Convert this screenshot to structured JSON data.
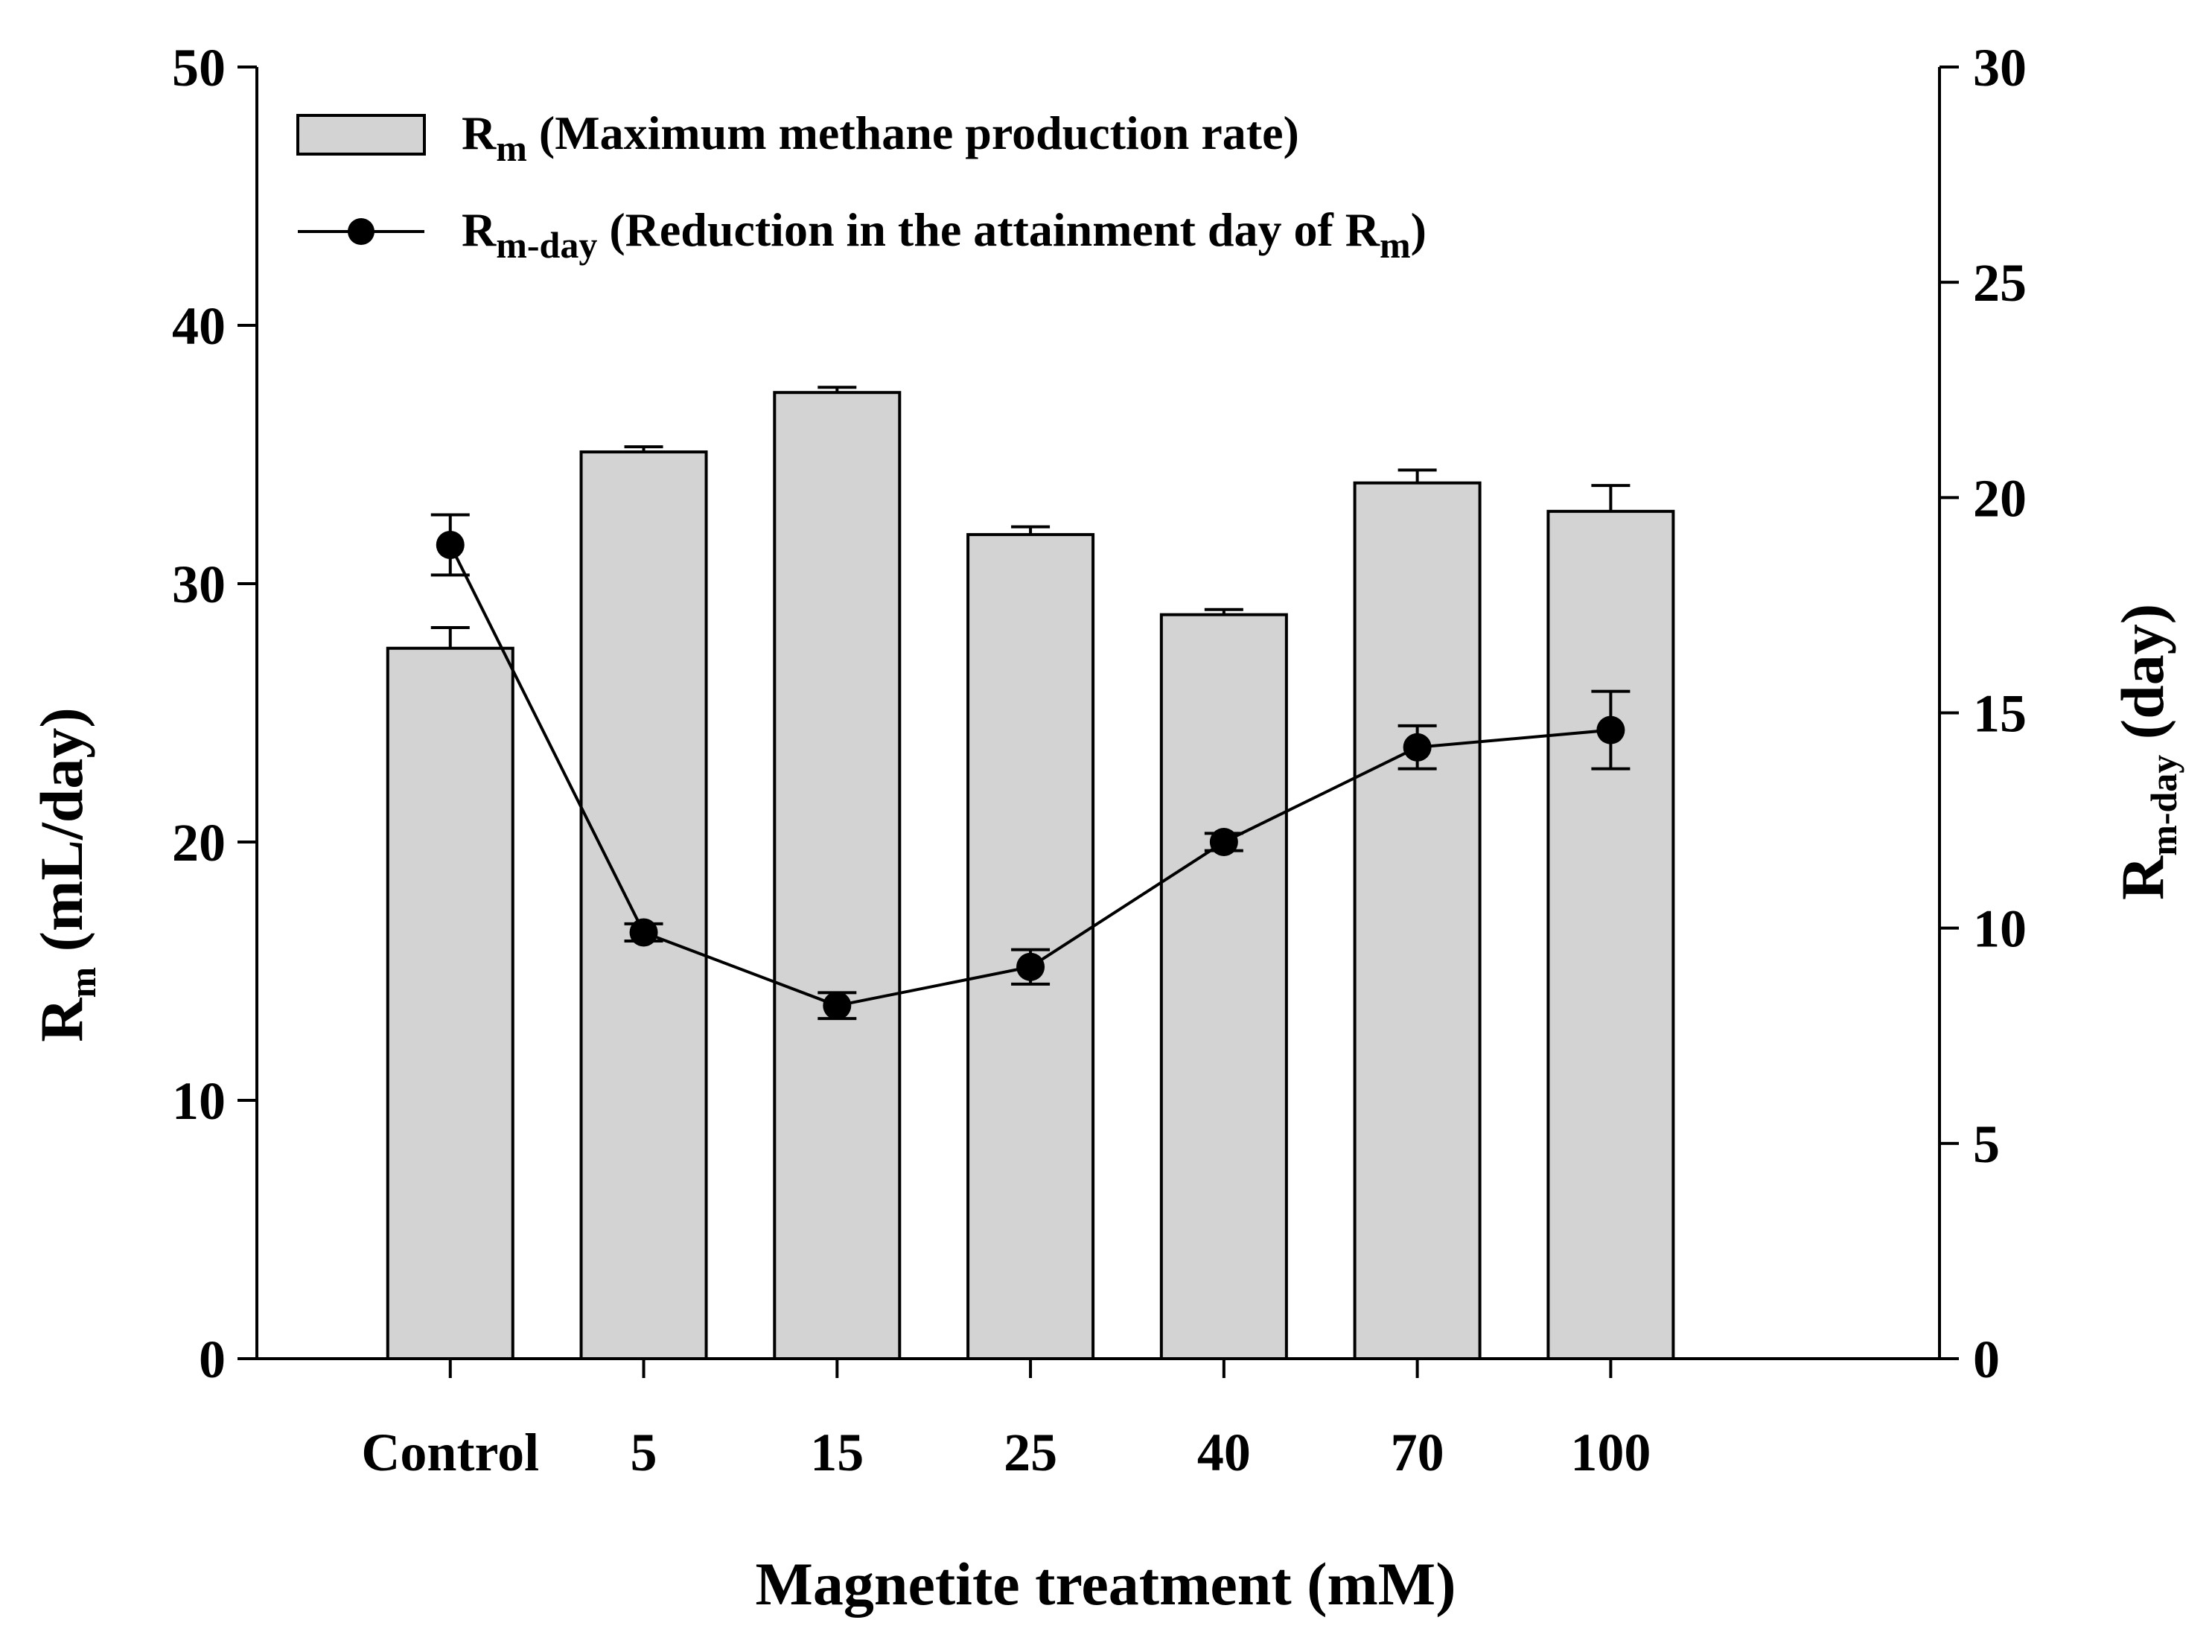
{
  "chart_data": {
    "type": "bar",
    "xlabel": "Magnetite treatment (mM)",
    "categories": [
      "Control",
      "5",
      "15",
      "25",
      "40",
      "70",
      "100"
    ],
    "left_axis": {
      "label_main": "R",
      "label_sub": "m",
      "label_unit": " (mL/day)",
      "ylim": [
        0,
        50
      ],
      "ticks": [
        "0",
        "10",
        "20",
        "30",
        "40",
        "50"
      ]
    },
    "right_axis": {
      "label_main": "R",
      "label_sub": "m-day",
      "label_unit": "  (day)",
      "ylim": [
        0,
        30
      ],
      "ticks": [
        "0",
        "5",
        "10",
        "15",
        "20",
        "25",
        "30"
      ]
    },
    "series": [
      {
        "name": "Rm (Maximum methane production rate)",
        "type": "bar",
        "axis": "left",
        "color": "#d3d3d3",
        "values": [
          27.5,
          35.1,
          37.4,
          31.9,
          28.8,
          33.9,
          32.8
        ],
        "errors": [
          0.8,
          0.2,
          0.2,
          0.3,
          0.2,
          0.5,
          1.0
        ]
      },
      {
        "name": "Rm-day (Reduction in the attainment day of Rm)",
        "type": "line",
        "axis": "right",
        "color": "#000000",
        "values": [
          18.9,
          9.9,
          8.2,
          9.1,
          12.0,
          14.2,
          14.6
        ],
        "errors": [
          0.7,
          0.2,
          0.3,
          0.4,
          0.2,
          0.5,
          0.9
        ]
      }
    ],
    "legend": {
      "position": "top-left",
      "items": [
        {
          "symbol": "bar",
          "main": "R",
          "sub": "m",
          "text": " (Maximum methane production rate)"
        },
        {
          "symbol": "line-dot",
          "main": "R",
          "sub": "m-day",
          "text": " (Reduction in the attainment day of R",
          "sub2": "m",
          "tail": ")"
        }
      ]
    }
  }
}
